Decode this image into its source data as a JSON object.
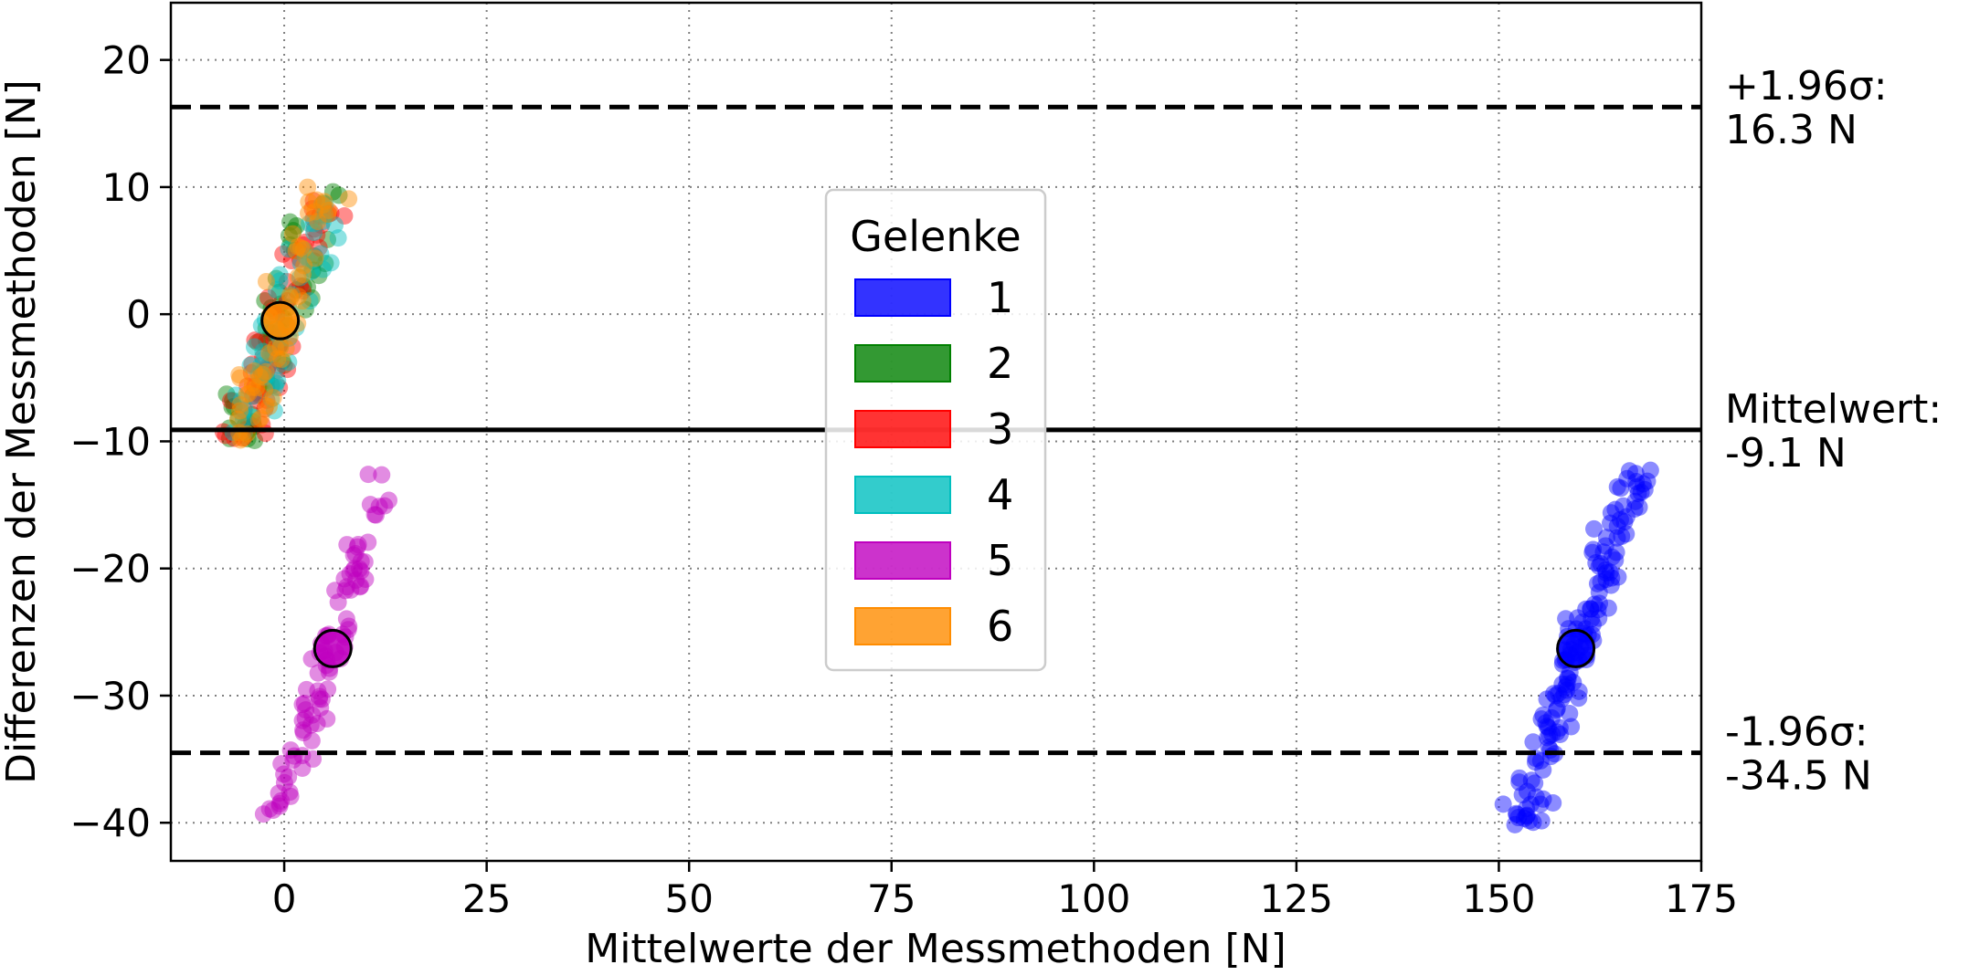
{
  "chart_data": {
    "type": "scatter",
    "title": "",
    "xlabel": "Mittelwerte der Messmethoden [N]",
    "ylabel": "Differenzen der Messmethoden [N]",
    "xlim": [
      -14,
      175
    ],
    "ylim": [
      -43,
      24.5
    ],
    "xticks": [
      0,
      25,
      50,
      75,
      100,
      125,
      150,
      175
    ],
    "yticks": [
      -40,
      -30,
      -20,
      -10,
      0,
      10,
      20
    ],
    "grid": true,
    "legend": {
      "title": "Gelenke",
      "position": "center",
      "entries": [
        "1",
        "2",
        "3",
        "4",
        "5",
        "6"
      ]
    },
    "reference_lines": [
      {
        "y": 16.3,
        "style": "dashed",
        "label_line1": "+1.96σ:",
        "label_line2": "16.3 N"
      },
      {
        "y": -9.1,
        "style": "solid",
        "label_line1": "Mittelwert:",
        "label_line2": "-9.1 N"
      },
      {
        "y": -34.5,
        "style": "dashed",
        "label_line1": "-1.96σ:",
        "label_line2": "-34.5 N"
      }
    ],
    "series": [
      {
        "name": "1",
        "color": "#0000ff",
        "mean": [
          159.5,
          -26.3
        ],
        "x_range": [
          152.5,
          167
        ],
        "y_range": [
          -40.5,
          -12
        ],
        "n": 150,
        "seed": 11,
        "jitter": 1.0
      },
      {
        "name": "2",
        "color": "#008000",
        "mean": [
          -0.5,
          -0.5
        ],
        "x_range": [
          -5.5,
          5.5
        ],
        "y_range": [
          -10,
          10
        ],
        "n": 60,
        "seed": 22,
        "jitter": 1.4
      },
      {
        "name": "3",
        "color": "#ff0000",
        "mean": [
          -0.5,
          -0.5
        ],
        "x_range": [
          -5.5,
          5.5
        ],
        "y_range": [
          -10,
          10
        ],
        "n": 60,
        "seed": 33,
        "jitter": 1.4
      },
      {
        "name": "4",
        "color": "#00bfbf",
        "mean": [
          -0.5,
          -0.5
        ],
        "x_range": [
          -5.5,
          5.5
        ],
        "y_range": [
          -10,
          10
        ],
        "n": 60,
        "seed": 44,
        "jitter": 1.4
      },
      {
        "name": "5",
        "color": "#bf00bf",
        "mean": [
          6,
          -26.3
        ],
        "x_range": [
          -1,
          12.5
        ],
        "y_range": [
          -40,
          -12.5
        ],
        "n": 90,
        "seed": 55,
        "jitter": 0.9
      },
      {
        "name": "6",
        "color": "#ff8c00",
        "mean": [
          -0.5,
          -0.5
        ],
        "x_range": [
          -5.5,
          5.5
        ],
        "y_range": [
          -10,
          10
        ],
        "n": 60,
        "seed": 66,
        "jitter": 1.2
      }
    ],
    "point_mapping_note": ""
  }
}
